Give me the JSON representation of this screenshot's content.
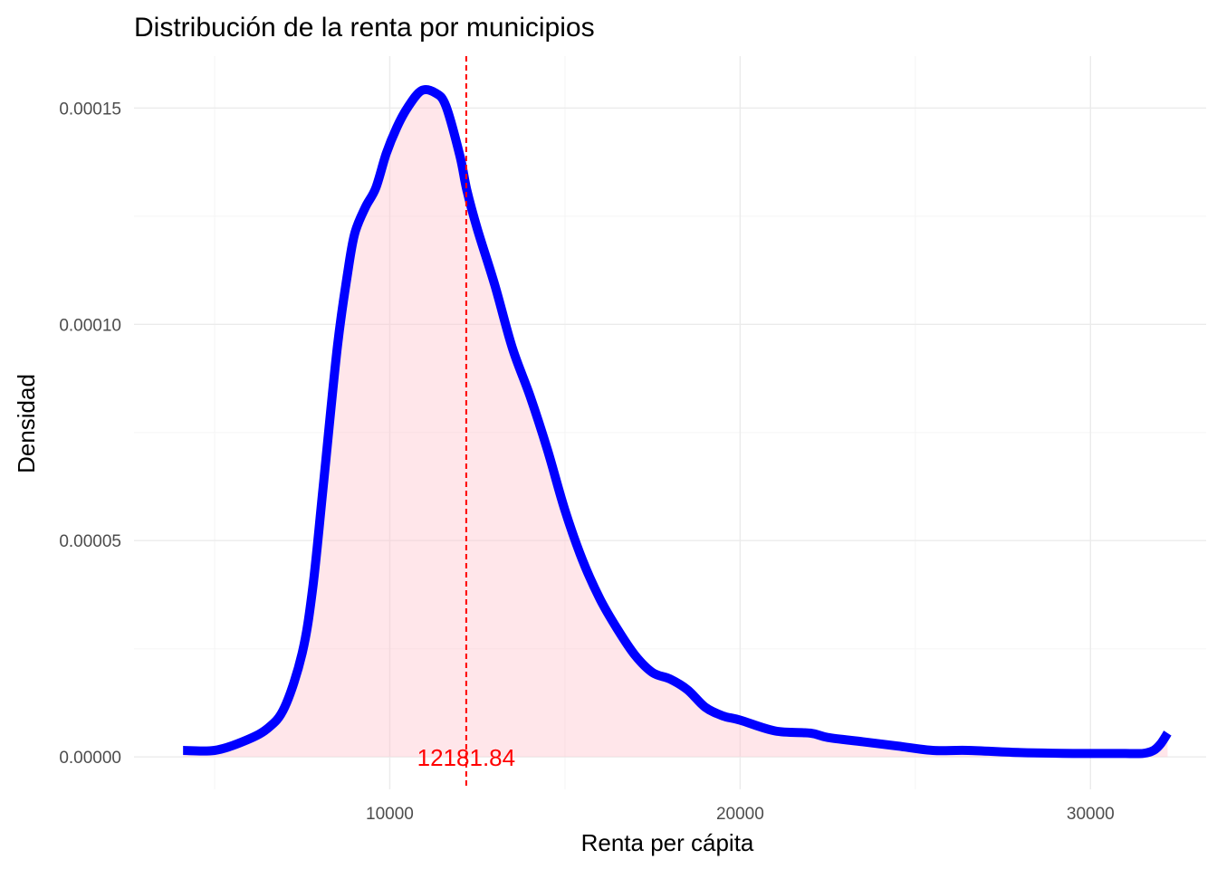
{
  "chart_data": {
    "type": "area",
    "title": "Distribución de la renta por municipios",
    "xlabel": "Renta per cápita",
    "ylabel": "Densidad",
    "xlim": [
      2700,
      33300
    ],
    "ylim": [
      -7.5e-06,
      0.000162
    ],
    "x_ticks": [
      10000,
      20000,
      30000
    ],
    "x_tick_labels": [
      "10000",
      "20000",
      "30000"
    ],
    "x_minor_ticks": [
      5000,
      15000,
      25000
    ],
    "y_ticks": [
      0,
      5e-05,
      0.0001,
      0.00015
    ],
    "y_tick_labels": [
      "0.00000",
      "0.00005",
      "0.00010",
      "0.00015"
    ],
    "y_minor_ticks": [
      2.5e-05,
      7.5e-05,
      0.000125
    ],
    "grid": true,
    "legend": "none",
    "colors": {
      "line": "#0000ff",
      "fill": "#ffc0cb",
      "vline": "#ff0000",
      "grid_major": "#ebebeb",
      "grid_minor": "#f5f5f5"
    },
    "series": [
      {
        "x": [
          4100,
          5000,
          5800,
          6500,
          7000,
          7500,
          7800,
          8100,
          8500,
          8800,
          9000,
          9300,
          9600,
          9900,
          10200,
          10500,
          10900,
          11300,
          11600,
          12000,
          12200,
          12500,
          13000,
          13500,
          14000,
          14500,
          15000,
          15500,
          16000,
          16500,
          17000,
          17500,
          18000,
          18500,
          19000,
          19500,
          20000,
          21000,
          22000,
          22500,
          23500,
          24500,
          25500,
          26500,
          28000,
          29500,
          30500,
          31000,
          31500,
          31800,
          32000,
          32200
        ],
        "y": [
          1.5e-06,
          1.5e-06,
          3.5e-06,
          6.5e-06,
          1.15e-05,
          2.4e-05,
          3.9e-05,
          6.25e-05,
          9.45e-05,
          0.000112,
          0.000121,
          0.000127,
          0.0001315,
          0.0001395,
          0.0001455,
          0.00015,
          0.000154,
          0.0001535,
          0.0001505,
          0.000139,
          0.000131,
          0.000122,
          0.000109,
          9.45e-05,
          8.35e-05,
          7.1e-05,
          5.7e-05,
          4.55e-05,
          3.65e-05,
          2.95e-05,
          2.35e-05,
          1.95e-05,
          1.8e-05,
          1.55e-05,
          1.15e-05,
          9.5e-06,
          8.5e-06,
          6e-06,
          5.5e-06,
          4.5e-06,
          3.5e-06,
          2.5e-06,
          1.5e-06,
          1.5e-06,
          1e-06,
          8e-07,
          8e-07,
          8e-07,
          8e-07,
          1.5e-06,
          3e-06,
          5.5e-06
        ]
      }
    ],
    "vline": {
      "x": 12181.84,
      "label": "12181.84"
    }
  }
}
